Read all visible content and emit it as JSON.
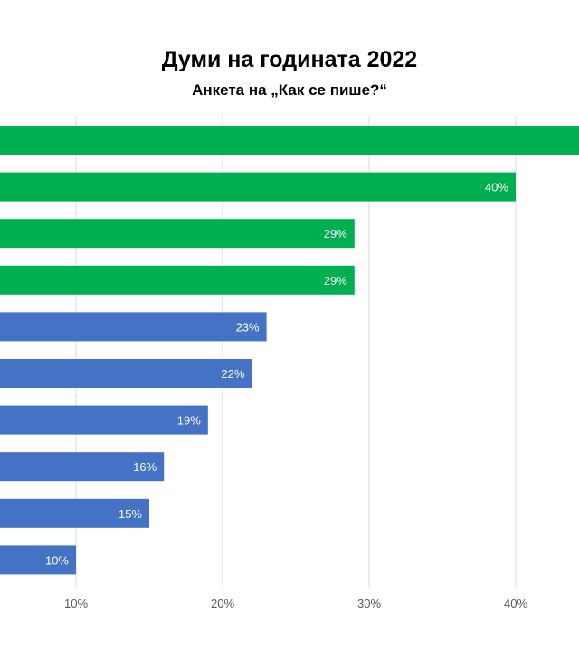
{
  "chart_data": {
    "type": "bar",
    "orientation": "horizontal",
    "title": "Думи на годината 2022",
    "subtitle": "Анкета на „Как се пише?“",
    "values": [
      45,
      40,
      29,
      29,
      23,
      22,
      19,
      16,
      15,
      10
    ],
    "data_labels": [
      "",
      "40%",
      "29%",
      "29%",
      "23%",
      "22%",
      "19%",
      "16%",
      "15%",
      "10%"
    ],
    "bar_colors": [
      "#00b050",
      "#00b050",
      "#00b050",
      "#00b050",
      "#4472c4",
      "#4472c4",
      "#4472c4",
      "#4472c4",
      "#4472c4",
      "#4472c4"
    ],
    "xticks": [
      10,
      20,
      30,
      40
    ],
    "xtick_labels": [
      "10%",
      "20%",
      "30%",
      "40%"
    ],
    "xlim": [
      5,
      45
    ],
    "grid": true,
    "gridline_color": "#d9d9d9",
    "label_color": "#ffffff",
    "tick_label_color": "#595959"
  }
}
